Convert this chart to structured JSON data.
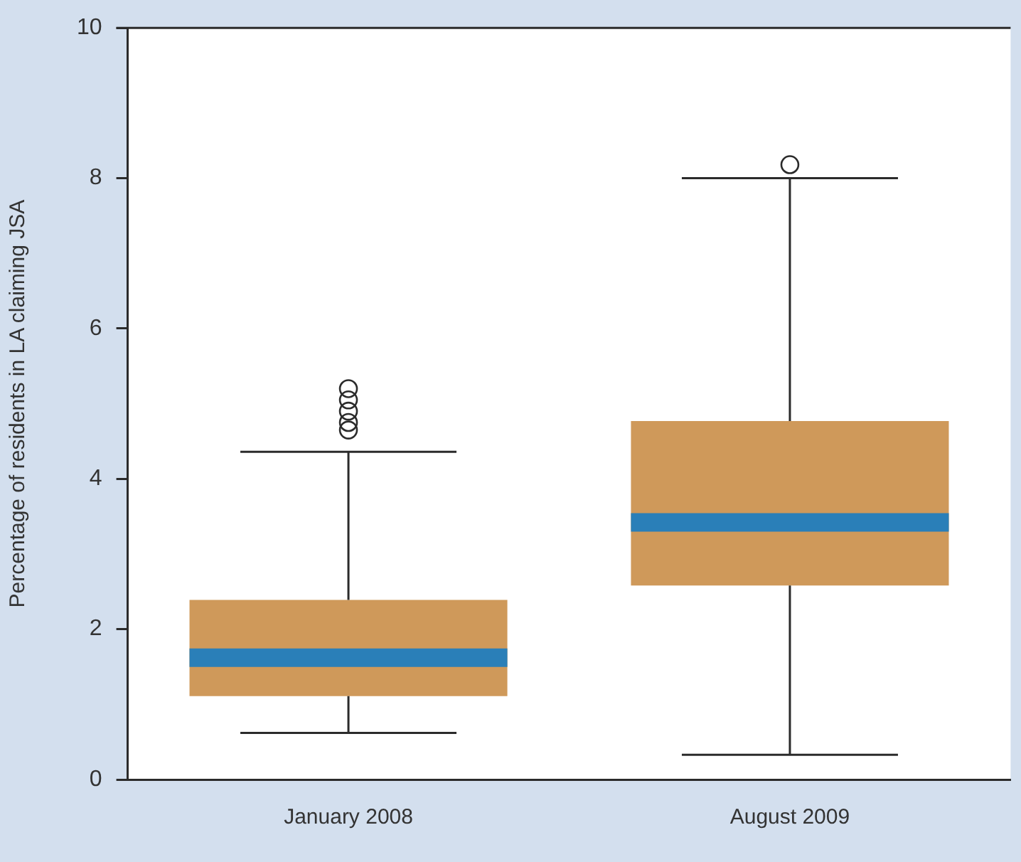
{
  "chart_data": {
    "type": "box",
    "ylabel": "Percentage of residents in LA claiming JSA",
    "categories": [
      "January 2008",
      "August 2009"
    ],
    "color": "#cf995a",
    "boxes": [
      {
        "low": 0.62,
        "q1": 1.11,
        "median": 1.62,
        "q3": 2.39,
        "high": 4.36,
        "outliers": [
          5.2,
          5.05,
          4.9,
          4.75,
          4.65
        ]
      },
      {
        "low": 0.33,
        "q1": 2.58,
        "median": 3.42,
        "q3": 4.77,
        "high": 8.0,
        "outliers": [
          8.18
        ]
      }
    ],
    "ylim": [
      0,
      10
    ],
    "yticks": [
      0,
      2,
      4,
      6,
      8,
      10
    ],
    "grid": false,
    "legend": false
  }
}
